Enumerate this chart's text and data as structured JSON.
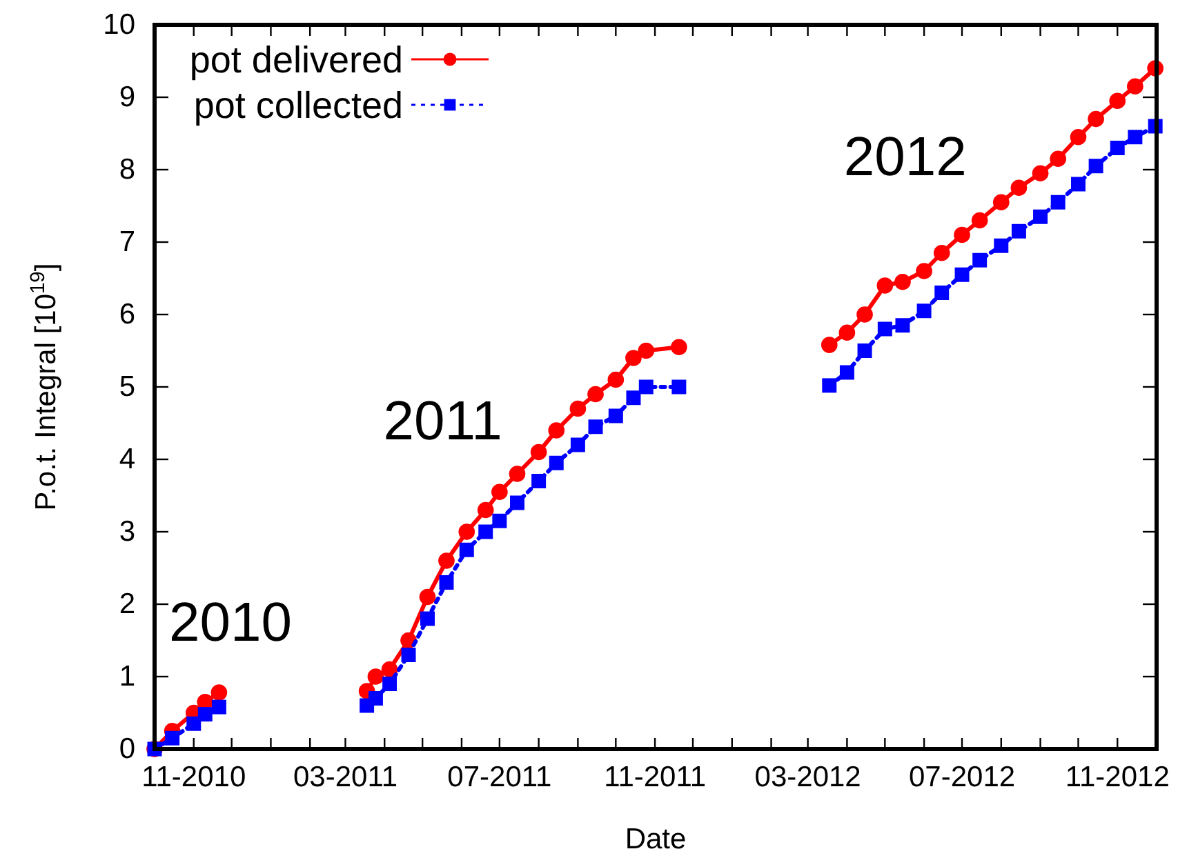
{
  "chart_data": {
    "type": "line",
    "xlabel": "Date",
    "ylabel": "P.o.t. Integral [10$^{19}$]",
    "x": [
      "2010-10-01",
      "2010-10-15",
      "2010-11-01",
      "2010-11-10",
      "2010-11-21",
      "2011-01-01",
      "2011-03-18",
      "2011-03-25",
      "2011-04-05",
      "2011-04-20",
      "2011-05-05",
      "2011-05-20",
      "2011-06-05",
      "2011-06-20",
      "2011-07-01",
      "2011-07-15",
      "2011-08-01",
      "2011-08-15",
      "2011-09-01",
      "2011-09-15",
      "2011-10-01",
      "2011-10-15",
      "2011-10-25",
      "2011-11-20",
      "2012-01-01",
      "2012-03-18",
      "2012-04-01",
      "2012-04-15",
      "2012-05-01",
      "2012-05-15",
      "2012-06-01",
      "2012-06-15",
      "2012-07-01",
      "2012-07-15",
      "2012-08-01",
      "2012-08-15",
      "2012-09-01",
      "2012-09-15",
      "2012-10-01",
      "2012-10-15",
      "2012-11-01",
      "2012-11-15",
      "2012-12-01"
    ],
    "series": [
      {
        "name": "pot delivered",
        "color": "#ff0000",
        "marker": "circle",
        "line_style": "solid",
        "values": [
          0,
          0.25,
          0.5,
          0.65,
          0.78,
          null,
          0.8,
          1.0,
          1.1,
          1.5,
          2.1,
          2.6,
          3.0,
          3.3,
          3.55,
          3.8,
          4.1,
          4.4,
          4.7,
          4.9,
          5.1,
          5.4,
          5.5,
          5.55,
          null,
          5.58,
          5.75,
          6.0,
          6.4,
          6.45,
          6.6,
          6.85,
          7.1,
          7.3,
          7.55,
          7.75,
          7.95,
          8.15,
          8.45,
          8.7,
          8.95,
          9.15,
          9.4
        ]
      },
      {
        "name": "pot collected",
        "color": "#0000ff",
        "marker": "square",
        "line_style": "dotted",
        "values": [
          0,
          0.15,
          0.35,
          0.48,
          0.58,
          null,
          0.6,
          0.7,
          0.9,
          1.3,
          1.8,
          2.3,
          2.75,
          3.0,
          3.15,
          3.4,
          3.7,
          3.95,
          4.2,
          4.45,
          4.6,
          4.85,
          5.0,
          5.0,
          null,
          5.02,
          5.2,
          5.5,
          5.8,
          5.85,
          6.05,
          6.3,
          6.55,
          6.75,
          6.95,
          7.15,
          7.35,
          7.55,
          7.8,
          8.05,
          8.3,
          8.45,
          8.6
        ]
      }
    ],
    "xlim": [
      "2010-10-01",
      "2012-12-02"
    ],
    "xticks": [
      {
        "value": "2010-11-01",
        "label": "11-2010"
      },
      {
        "value": "2010-12-01",
        "label": null
      },
      {
        "value": "2011-01-01",
        "label": null
      },
      {
        "value": "2011-02-01",
        "label": null
      },
      {
        "value": "2011-03-01",
        "label": "03-2011"
      },
      {
        "value": "2011-04-01",
        "label": null
      },
      {
        "value": "2011-05-01",
        "label": null
      },
      {
        "value": "2011-06-01",
        "label": null
      },
      {
        "value": "2011-07-01",
        "label": "07-2011"
      },
      {
        "value": "2011-08-01",
        "label": null
      },
      {
        "value": "2011-09-01",
        "label": null
      },
      {
        "value": "2011-10-01",
        "label": null
      },
      {
        "value": "2011-11-01",
        "label": "11-2011"
      },
      {
        "value": "2011-12-01",
        "label": null
      },
      {
        "value": "2012-01-01",
        "label": null
      },
      {
        "value": "2012-02-01",
        "label": null
      },
      {
        "value": "2012-03-01",
        "label": "03-2012"
      },
      {
        "value": "2012-04-01",
        "label": null
      },
      {
        "value": "2012-05-01",
        "label": null
      },
      {
        "value": "2012-06-01",
        "label": null
      },
      {
        "value": "2012-07-01",
        "label": "07-2012"
      },
      {
        "value": "2012-08-01",
        "label": null
      },
      {
        "value": "2012-09-01",
        "label": null
      },
      {
        "value": "2012-10-01",
        "label": null
      },
      {
        "value": "2012-11-01",
        "label": "11-2012"
      }
    ],
    "ylim": [
      0,
      10
    ],
    "yticks": [
      0,
      1,
      2,
      3,
      4,
      5,
      6,
      7,
      8,
      9,
      10
    ],
    "annotations": [
      "2010",
      "2011",
      "2012"
    ],
    "legend": "top left",
    "grid": false
  }
}
